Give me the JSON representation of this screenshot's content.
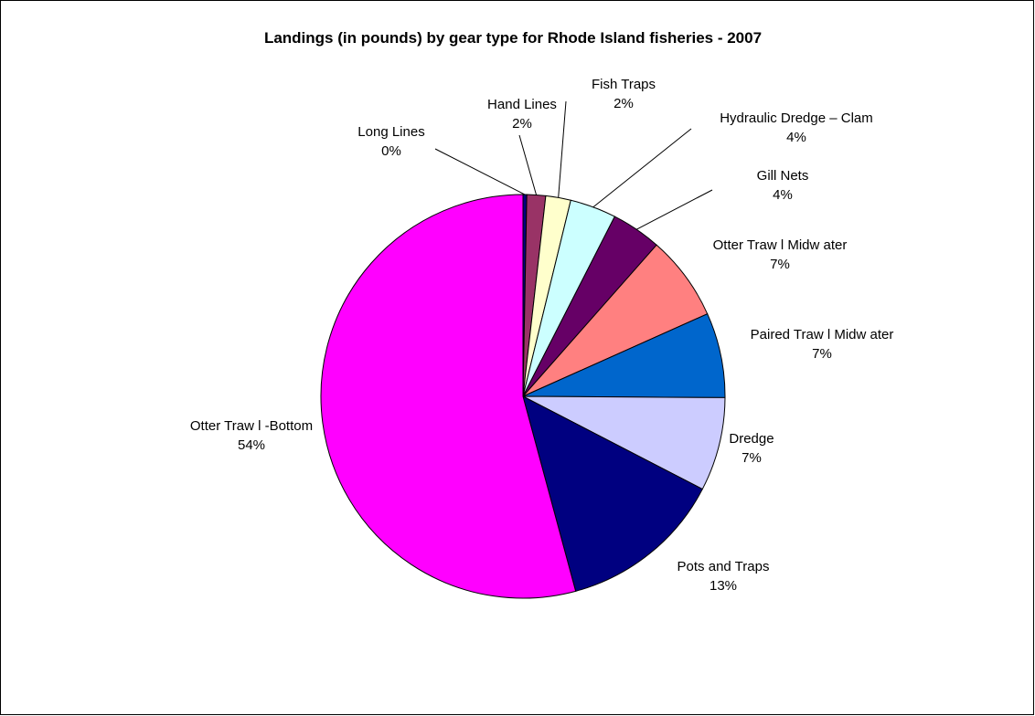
{
  "chart_data": {
    "type": "pie",
    "title": "Landings (in pounds) by gear type for Rhode Island fisheries - 2007",
    "legend": "none",
    "start": "12 o'clock",
    "direction": "clockwise",
    "slices": [
      {
        "name": "Long Lines",
        "value": 0.3,
        "percent_label": "0%",
        "color": "#000080"
      },
      {
        "name": "Hand Lines",
        "value": 1.5,
        "percent_label": "2%",
        "color": "#993366"
      },
      {
        "name": "Fish Traps",
        "value": 2.0,
        "percent_label": "2%",
        "color": "#FFFFCC"
      },
      {
        "name": "Hydraulic Dredge – Clam",
        "value": 3.7,
        "percent_label": "4%",
        "color": "#CCFFFF"
      },
      {
        "name": "Gill Nets",
        "value": 4.0,
        "percent_label": "4%",
        "color": "#660066"
      },
      {
        "name": "Otter Traw l Midw ater",
        "value": 6.8,
        "percent_label": "7%",
        "color": "#FF8080"
      },
      {
        "name": "Paired Traw l Midw ater",
        "value": 6.8,
        "percent_label": "7%",
        "color": "#0066CC"
      },
      {
        "name": "Dredge",
        "value": 7.5,
        "percent_label": "7%",
        "color": "#CCCCFF"
      },
      {
        "name": "Pots and Traps",
        "value": 13.2,
        "percent_label": "13%",
        "color": "#000080"
      },
      {
        "name": "Otter Traw l -Bottom",
        "value": 54.2,
        "percent_label": "54%",
        "color": "#FF00FF"
      }
    ]
  }
}
